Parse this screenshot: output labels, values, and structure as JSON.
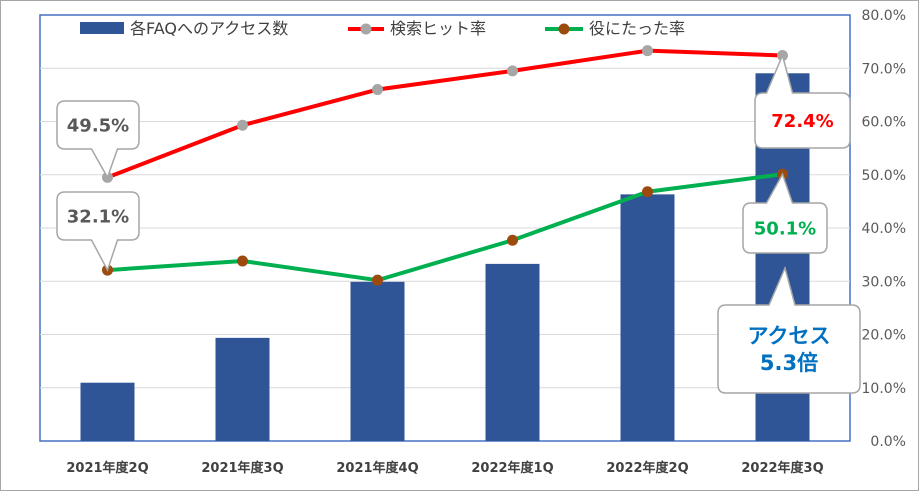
{
  "chart_data": {
    "type": "bar",
    "categories": [
      "2021年度2Q",
      "2021年度3Q",
      "2021年度4Q",
      "2022年度1Q",
      "2022年度2Q",
      "2022年度3Q"
    ],
    "series": [
      {
        "name": "各FAQへのアクセス数",
        "type": "bar",
        "axis": "left",
        "values": [
          13,
          23,
          35.5,
          39.5,
          55,
          82
        ],
        "color": "#2f5597"
      },
      {
        "name": "検索ヒット率",
        "type": "line",
        "axis": "right",
        "values": [
          49.5,
          59.3,
          66.0,
          69.5,
          73.3,
          72.4
        ],
        "color": "#ff0000",
        "marker_color": "#a6a6a6"
      },
      {
        "name": "役にたった率",
        "type": "line",
        "axis": "right",
        "values": [
          32.1,
          33.8,
          30.2,
          37.7,
          46.8,
          50.1
        ],
        "color": "#00b050",
        "marker_color": "#9c4a0e"
      }
    ],
    "y_left": {
      "ylim": [
        0,
        95
      ],
      "tick_count": 9,
      "grid": true
    },
    "y_right": {
      "ylim": [
        0,
        80
      ],
      "ticks": [
        "0.0%",
        "10.0%",
        "20.0%",
        "30.0%",
        "40.0%",
        "50.0%",
        "60.0%",
        "70.0%",
        "80.0%"
      ]
    },
    "legend": {
      "position": "top"
    },
    "annotations": [
      {
        "text": "49.5%",
        "series": 1,
        "point": 0,
        "color": "#595959"
      },
      {
        "text": "32.1%",
        "series": 2,
        "point": 0,
        "color": "#595959"
      },
      {
        "text": "72.4%",
        "series": 1,
        "point": 5,
        "color": "#ff0000"
      },
      {
        "text": "50.1%",
        "series": 2,
        "point": 5,
        "color": "#00b050"
      }
    ],
    "access_callout": {
      "line1": "アクセス",
      "line2": "5.3倍",
      "color": "#0070c0"
    }
  },
  "colors": {
    "plot_border": "#4472c4",
    "grid": "#d9d9d9",
    "frame": "#a6a6a6"
  }
}
